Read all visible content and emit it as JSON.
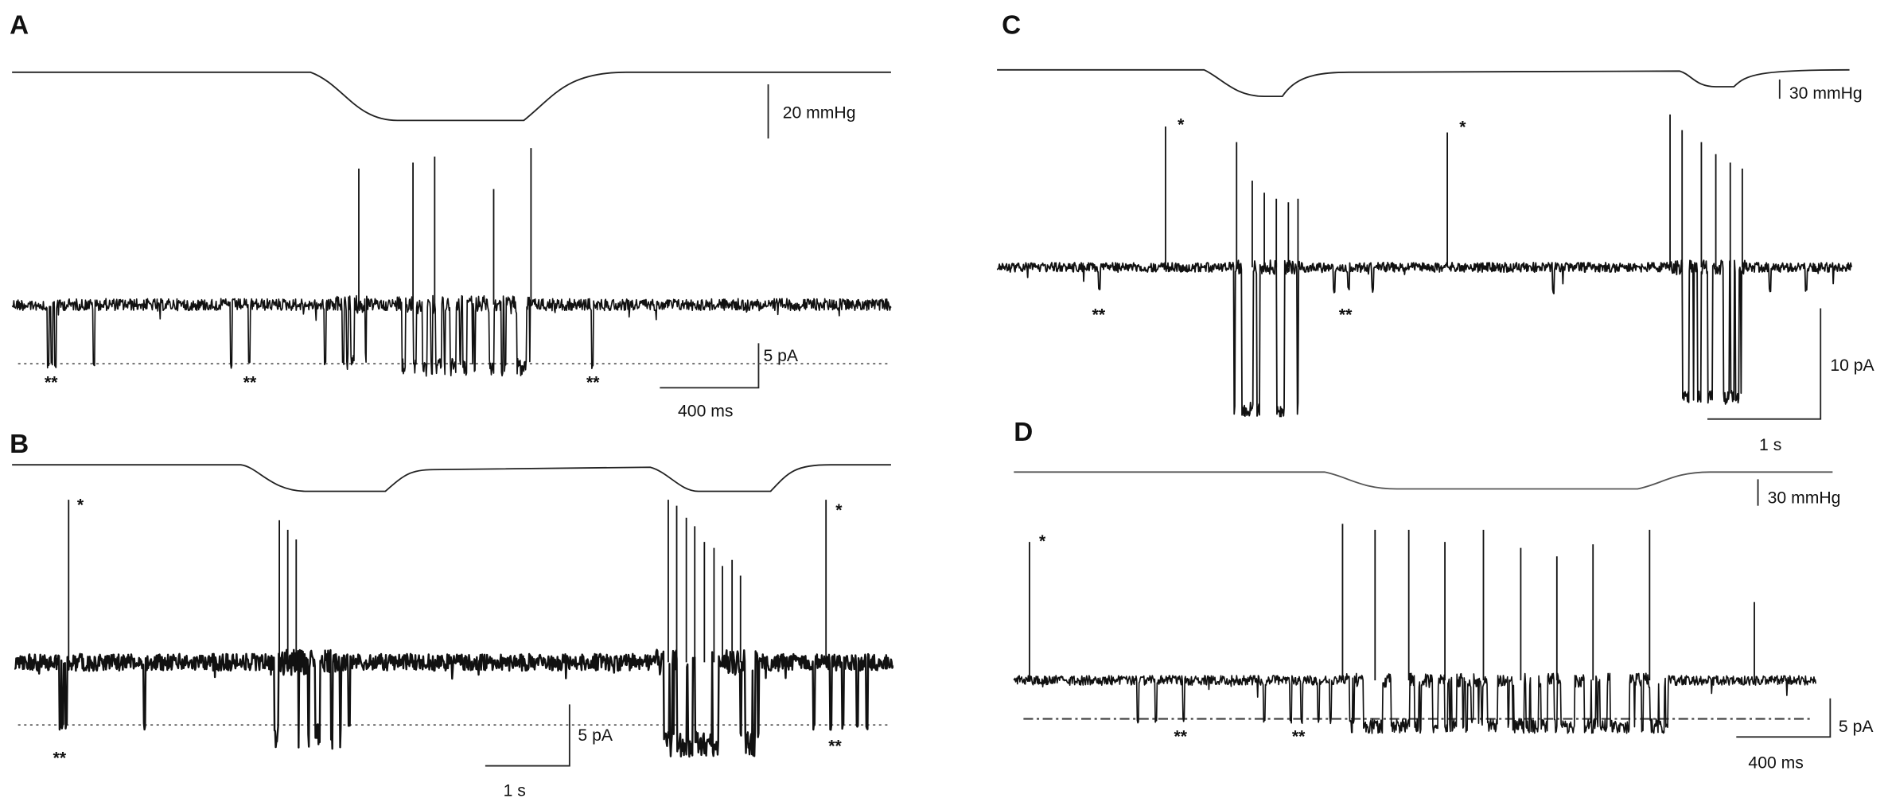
{
  "panels": [
    {
      "label": "A",
      "pressure_scale": "20 mmHg",
      "current_scale": "5 pA",
      "time_scale": "400 ms",
      "markers": [
        "**",
        "**",
        "**"
      ]
    },
    {
      "label": "B",
      "current_scale": "5 pA",
      "time_scale": "1 s",
      "markers": [
        "*",
        "**",
        "*",
        "**"
      ]
    },
    {
      "label": "C",
      "pressure_scale": "30 mmHg",
      "current_scale": "10 pA",
      "time_scale": "1 s",
      "markers": [
        "*",
        "*",
        "**",
        "**"
      ]
    },
    {
      "label": "D",
      "pressure_scale": "30 mmHg",
      "current_scale": "5 pA",
      "time_scale": "400 ms",
      "markers": [
        "*",
        "**",
        "**"
      ]
    }
  ]
}
